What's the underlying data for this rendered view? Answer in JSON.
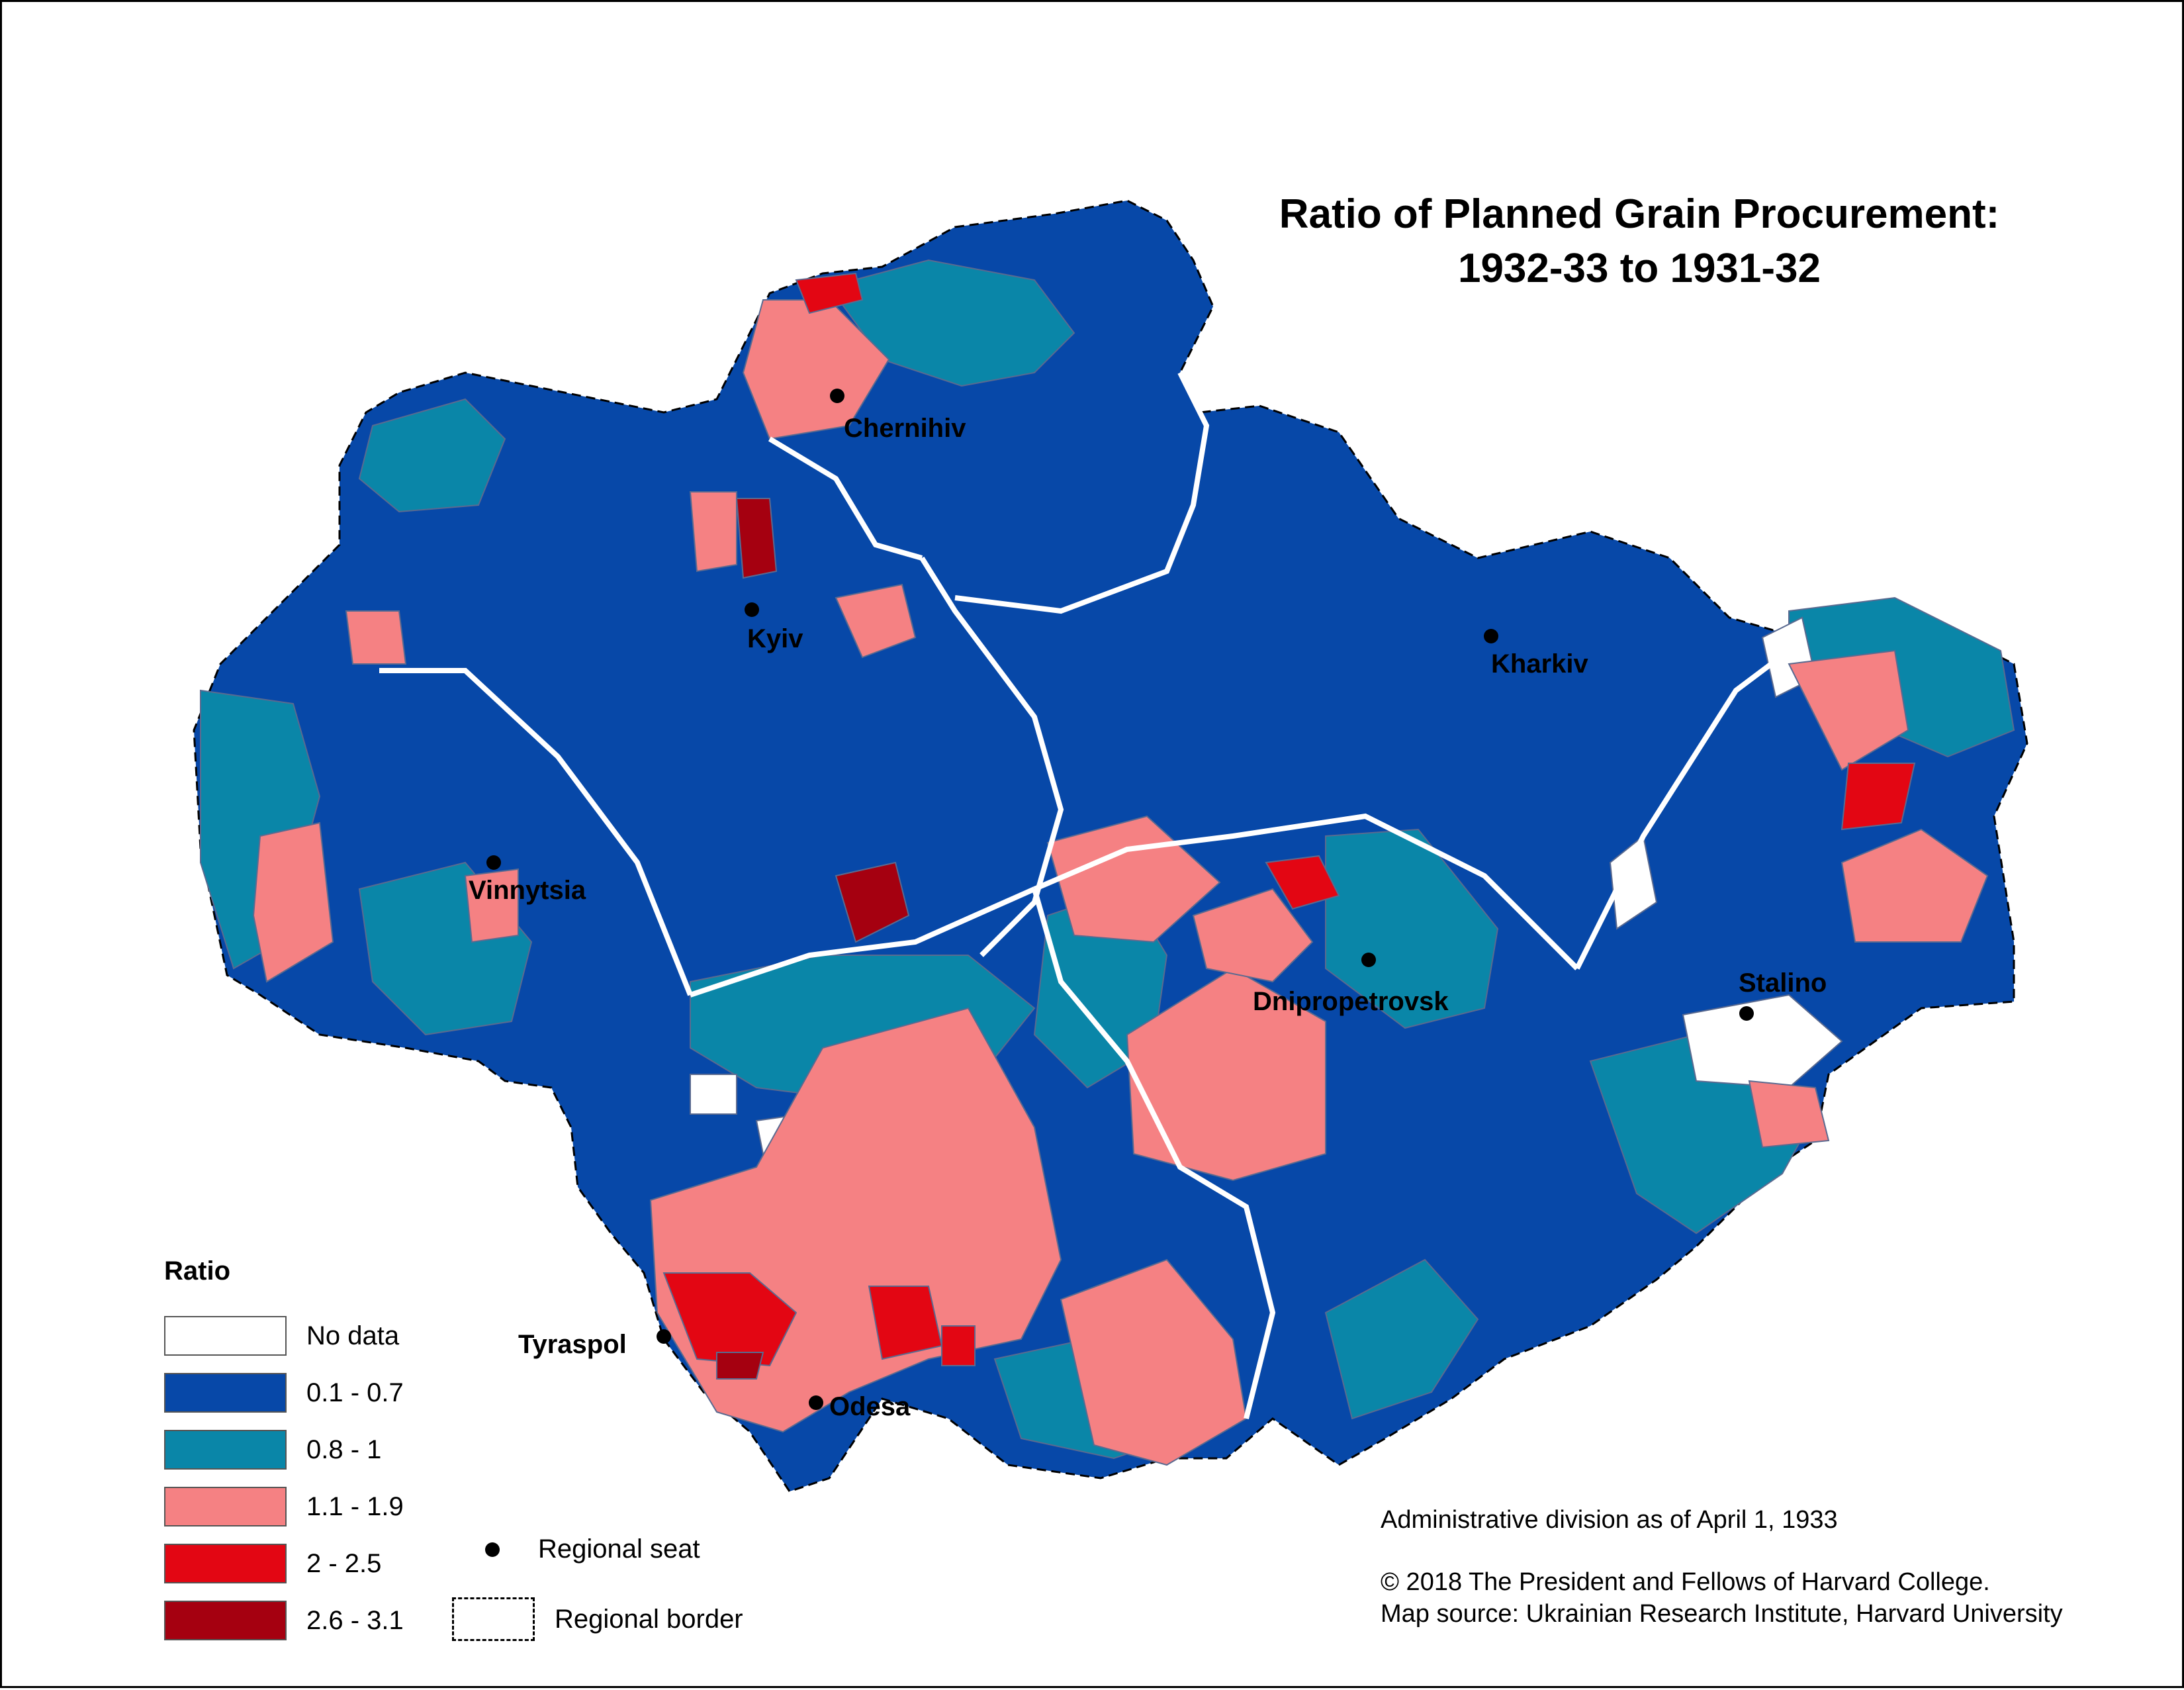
{
  "title": {
    "line1": "Ratio of Planned Grain Procurement:",
    "line2": "1932-33 to 1931-32"
  },
  "legend": {
    "title": "Ratio",
    "classes": [
      {
        "label": "No data",
        "color": "#ffffff"
      },
      {
        "label": "0.1 - 0.7",
        "color": "#0748a8"
      },
      {
        "label": "0.8 - 1",
        "color": "#0a86a8"
      },
      {
        "label": "1.1 - 1.9",
        "color": "#f58183"
      },
      {
        "label": "2 - 2.5",
        "color": "#e30613"
      },
      {
        "label": "2.6 - 3.1",
        "color": "#a50010"
      }
    ],
    "regional_seat": "Regional seat",
    "regional_border": "Regional border"
  },
  "cities": {
    "chernihiv": "Chernihiv",
    "kyiv": "Kyiv",
    "kharkiv": "Kharkiv",
    "vinnytsia": "Vinnytsia",
    "dnipropetrovsk": "Dnipropetrovsk",
    "stalino": "Stalino",
    "tyraspol": "Tyraspol",
    "odesa": "Odesa"
  },
  "notes": {
    "admin_division": "Administrative division as of April 1, 1933",
    "copyright": "© 2018 The President and Fellows of Harvard College.",
    "source": "Map source: Ukrainian Research Institute, Harvard University"
  }
}
